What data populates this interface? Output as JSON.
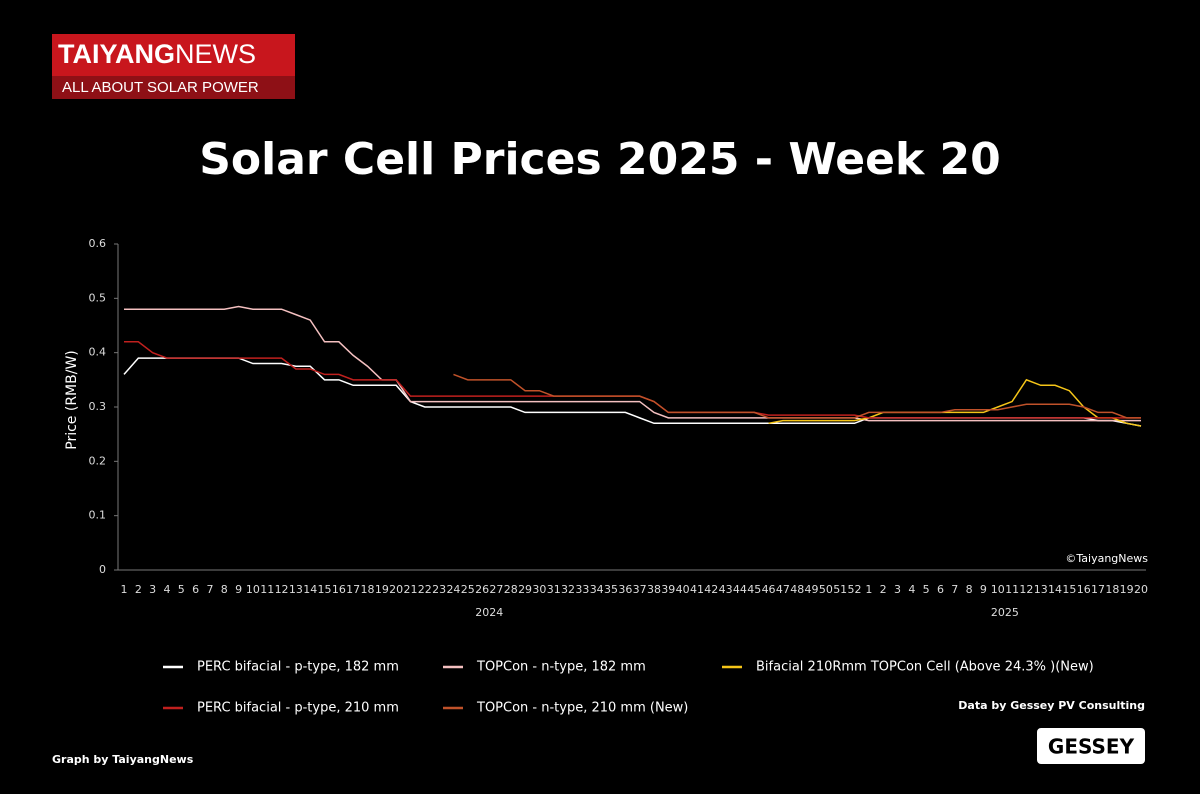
{
  "logo": {
    "parts": [
      "TAIYANG",
      "NEWS"
    ],
    "tagline": "ALL ABOUT SOLAR POWER"
  },
  "credit_source": "Data by Gessey PV Consulting",
  "credit_graph": "Graph by TaiyangNews",
  "gessey_logo": "GESSEY",
  "chart_data": {
    "type": "line",
    "title": "Solar Cell Prices 2025 - Week 20",
    "y_label": "Price (RMB/W)",
    "watermark": "©TaiyangNews",
    "category_groups": [
      "2024",
      "2025"
    ],
    "categories": [
      "1",
      "2",
      "3",
      "4",
      "5",
      "6",
      "7",
      "8",
      "9",
      "10",
      "11",
      "12",
      "13",
      "14",
      "15",
      "16",
      "17",
      "18",
      "19",
      "20",
      "21",
      "22",
      "23",
      "24",
      "25",
      "26",
      "27",
      "28",
      "29",
      "30",
      "31",
      "32",
      "33",
      "34",
      "35",
      "36",
      "37",
      "38",
      "39",
      "40",
      "41",
      "42",
      "43",
      "44",
      "45",
      "46",
      "47",
      "48",
      "49",
      "50",
      "51",
      "52",
      "1",
      "2",
      "3",
      "4",
      "5",
      "6",
      "7",
      "8",
      "9",
      "10",
      "11",
      "12",
      "13",
      "14",
      "15",
      "16",
      "17",
      "18",
      "19",
      "20"
    ],
    "ylim": [
      0,
      0.6
    ],
    "yticks": [
      0,
      0.1,
      0.2,
      0.3,
      0.4,
      0.5,
      0.6
    ],
    "grid": false,
    "series": [
      {
        "name": "PERC bifacial - p-type, 182 mm",
        "color": "#ffffff",
        "values": [
          0.36,
          0.39,
          0.39,
          0.39,
          0.39,
          0.39,
          0.39,
          0.39,
          0.39,
          0.38,
          0.38,
          0.38,
          0.375,
          0.375,
          0.35,
          0.35,
          0.34,
          0.34,
          0.34,
          0.34,
          0.31,
          0.3,
          0.3,
          0.3,
          0.3,
          0.3,
          0.3,
          0.3,
          0.29,
          0.29,
          0.29,
          0.29,
          0.29,
          0.29,
          0.29,
          0.29,
          0.28,
          0.27,
          0.27,
          0.27,
          0.27,
          0.27,
          0.27,
          0.27,
          0.27,
          0.27,
          0.27,
          0.27,
          0.27,
          0.27,
          0.27,
          0.27,
          0.28,
          0.28,
          0.28,
          0.28,
          0.28,
          0.28,
          0.28,
          0.28,
          0.28,
          0.28,
          0.28,
          0.28,
          0.28,
          0.28,
          0.28,
          0.28,
          0.275,
          0.275,
          0.27,
          0.265
        ]
      },
      {
        "name": "TOPCon - n-type, 182 mm",
        "color": "#f4c0c0",
        "values": [
          0.48,
          0.48,
          0.48,
          0.48,
          0.48,
          0.48,
          0.48,
          0.48,
          0.485,
          0.48,
          0.48,
          0.48,
          0.47,
          0.46,
          0.42,
          0.42,
          0.395,
          0.375,
          0.35,
          0.35,
          0.31,
          0.31,
          0.31,
          0.31,
          0.31,
          0.31,
          0.31,
          0.31,
          0.31,
          0.31,
          0.31,
          0.31,
          0.31,
          0.31,
          0.31,
          0.31,
          0.31,
          0.29,
          0.28,
          0.28,
          0.28,
          0.28,
          0.28,
          0.28,
          0.28,
          0.28,
          0.28,
          0.28,
          0.28,
          0.28,
          0.28,
          0.28,
          0.275,
          0.275,
          0.275,
          0.275,
          0.275,
          0.275,
          0.275,
          0.275,
          0.275,
          0.275,
          0.275,
          0.275,
          0.275,
          0.275,
          0.275,
          0.275,
          0.275,
          0.275,
          0.275,
          0.275
        ]
      },
      {
        "name": "Bifacial  210Rmm TOPCon Cell (Above 24.3% )(New)",
        "color": "#f5c518",
        "values": [
          null,
          null,
          null,
          null,
          null,
          null,
          null,
          null,
          null,
          null,
          null,
          null,
          null,
          null,
          null,
          null,
          null,
          null,
          null,
          null,
          null,
          null,
          null,
          null,
          null,
          null,
          null,
          null,
          null,
          null,
          null,
          null,
          null,
          null,
          null,
          null,
          null,
          null,
          null,
          null,
          null,
          null,
          null,
          null,
          null,
          0.27,
          0.275,
          0.275,
          0.275,
          0.275,
          0.275,
          0.275,
          0.28,
          0.29,
          0.29,
          0.29,
          0.29,
          0.29,
          0.29,
          0.29,
          0.29,
          0.3,
          0.31,
          0.35,
          0.34,
          0.34,
          0.33,
          0.3,
          0.28,
          0.28,
          0.27,
          0.265
        ]
      },
      {
        "name": "PERC bifacial - p-type, 210 mm",
        "color": "#c0201e",
        "values": [
          0.42,
          0.42,
          0.4,
          0.39,
          0.39,
          0.39,
          0.39,
          0.39,
          0.39,
          0.39,
          0.39,
          0.39,
          0.37,
          0.37,
          0.36,
          0.36,
          0.35,
          0.35,
          0.35,
          0.35,
          0.32,
          0.32,
          0.32,
          0.32,
          0.32,
          0.32,
          0.32,
          0.32,
          0.32,
          0.32,
          0.32,
          0.32,
          0.32,
          0.32,
          0.32,
          0.32,
          0.32,
          0.31,
          0.29,
          0.29,
          0.29,
          0.29,
          0.29,
          0.29,
          0.29,
          0.285,
          0.285,
          0.285,
          0.285,
          0.285,
          0.285,
          0.285,
          0.28,
          0.28,
          0.28,
          0.28,
          0.28,
          0.28,
          0.28,
          0.28,
          0.28,
          0.28,
          0.28,
          0.28,
          0.28,
          0.28,
          0.28,
          0.28,
          0.28,
          0.28,
          0.28,
          0.28
        ]
      },
      {
        "name": "TOPCon - n-type, 210 mm (New)",
        "color": "#c0522a",
        "values": [
          null,
          null,
          null,
          null,
          null,
          null,
          null,
          null,
          null,
          null,
          null,
          null,
          null,
          null,
          null,
          null,
          null,
          null,
          null,
          null,
          null,
          null,
          null,
          0.36,
          0.35,
          0.35,
          0.35,
          0.35,
          0.33,
          0.33,
          0.32,
          0.32,
          0.32,
          0.32,
          0.32,
          0.32,
          0.32,
          0.31,
          0.29,
          0.29,
          0.29,
          0.29,
          0.29,
          0.29,
          0.29,
          0.28,
          0.28,
          0.28,
          0.28,
          0.28,
          0.28,
          0.28,
          0.29,
          0.29,
          0.29,
          0.29,
          0.29,
          0.29,
          0.295,
          0.295,
          0.295,
          0.295,
          0.3,
          0.305,
          0.305,
          0.305,
          0.305,
          0.3,
          0.29,
          0.29,
          0.28,
          0.28
        ]
      }
    ]
  }
}
